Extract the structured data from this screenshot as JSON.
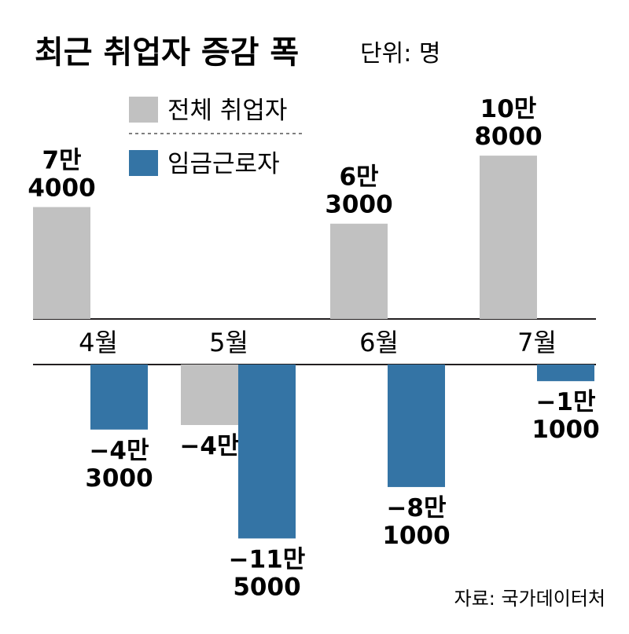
{
  "title": "최근 취업자 증감 폭",
  "unit": "단위: 명",
  "source": "자료: 국가데이터처",
  "chart_data": {
    "type": "bar",
    "categories": [
      "4월",
      "5월",
      "6월",
      "7월"
    ],
    "series": [
      {
        "name": "전체 취업자",
        "color": "#c1c1c1",
        "values": [
          74000,
          -40000,
          63000,
          108000
        ],
        "labels": [
          [
            "7만",
            "4000"
          ],
          [
            "−4만"
          ],
          [
            "6만",
            "3000"
          ],
          [
            "10만",
            "8000"
          ]
        ]
      },
      {
        "name": "임금근로자",
        "color": "#3474a5",
        "values": [
          -43000,
          -115000,
          -81000,
          -11000
        ],
        "labels": [
          [
            "−4만",
            "3000"
          ],
          [
            "−11만",
            "5000"
          ],
          [
            "−8만",
            "1000"
          ],
          [
            "−1만",
            "1000"
          ]
        ]
      }
    ]
  }
}
